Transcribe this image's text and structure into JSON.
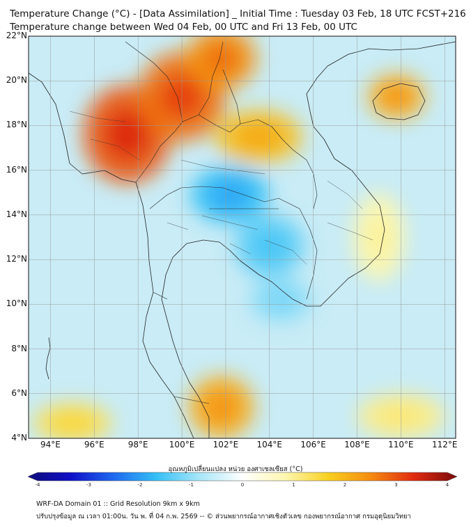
{
  "header": {
    "title_line1": "Temperature Change (°C) - [Data Assimilation] _ Initial Time : Tuesday 03 Feb, 18 UTC FCST+216",
    "title_line2": "Temperature change between Wed 04 Feb, 00 UTC and Fri 13 Feb, 00 UTC"
  },
  "map": {
    "lat_labels": [
      "22°N",
      "20°N",
      "18°N",
      "16°N",
      "14°N",
      "12°N",
      "10°N",
      "8°N",
      "6°N",
      "4°N"
    ],
    "lon_labels": [
      "94°E",
      "96°E",
      "98°E",
      "100°E",
      "102°E",
      "104°E",
      "106°E",
      "108°E",
      "110°E",
      "112°E"
    ],
    "lat_range": [
      4,
      22
    ],
    "lon_range": [
      93,
      112.5
    ],
    "grid_color": "#9a9a9a",
    "ocean_color": "#c9ecf6",
    "anomalies": [
      {
        "name": "northern-myanmar-warm",
        "lon": 97.5,
        "lat": 17.6,
        "value": 2.8,
        "rx_deg": 2.0,
        "ry_deg": 2.2
      },
      {
        "name": "northern-thailand-warm",
        "lon": 100.0,
        "lat": 19.3,
        "value": 2.6,
        "rx_deg": 2.0,
        "ry_deg": 2.0
      },
      {
        "name": "laos-north-warm",
        "lon": 101.8,
        "lat": 21.0,
        "value": 2.3,
        "rx_deg": 1.6,
        "ry_deg": 1.4
      },
      {
        "name": "laos-central-warm",
        "lon": 103.5,
        "lat": 17.5,
        "value": 1.8,
        "rx_deg": 2.0,
        "ry_deg": 1.2
      },
      {
        "name": "hainan-warm",
        "lon": 109.8,
        "lat": 19.3,
        "value": 2.0,
        "rx_deg": 1.3,
        "ry_deg": 1.0
      },
      {
        "name": "northeast-thailand-cool",
        "lon": 102.2,
        "lat": 14.9,
        "value": -1.6,
        "rx_deg": 1.8,
        "ry_deg": 1.3
      },
      {
        "name": "cambodia-cool",
        "lon": 104.0,
        "lat": 12.6,
        "value": -1.3,
        "rx_deg": 1.6,
        "ry_deg": 1.4
      },
      {
        "name": "gulf-of-thailand-cool",
        "lon": 104.5,
        "lat": 10.2,
        "value": -1.0,
        "rx_deg": 1.4,
        "ry_deg": 1.0
      },
      {
        "name": "malay-peninsula-warm",
        "lon": 101.8,
        "lat": 5.4,
        "value": 2.0,
        "rx_deg": 1.5,
        "ry_deg": 1.4
      },
      {
        "name": "andaman-southwest-warm",
        "lon": 95.0,
        "lat": 4.7,
        "value": 1.3,
        "rx_deg": 1.8,
        "ry_deg": 0.9
      },
      {
        "name": "south-china-sea-warm",
        "lon": 110.0,
        "lat": 5.0,
        "value": 1.0,
        "rx_deg": 2.0,
        "ry_deg": 1.0
      },
      {
        "name": "vietnam-coast-warm",
        "lon": 109.0,
        "lat": 13.0,
        "value": 0.8,
        "rx_deg": 1.2,
        "ry_deg": 2.0
      }
    ]
  },
  "colorbar": {
    "title": "อุณหภูมิเปลี่ยนแปลง หน่วย องศาเซลเซียส (°C)",
    "ticks": [
      "-4",
      "-3",
      "-2",
      "-1",
      "0",
      "1",
      "2",
      "3",
      "4"
    ],
    "stops": [
      "#0d0d7a",
      "#1010c8",
      "#1e6af0",
      "#35c0f5",
      "#a8e6f8",
      "#ffffff",
      "#fdf7b0",
      "#f8d020",
      "#f58a10",
      "#e02a10",
      "#7a0a0a"
    ]
  },
  "footer": {
    "line1": "WRF-DA Domain 01 :: Grid Resolution 9km x 9km",
    "line2": "ปรับปรุงข้อมูล ณ เวลา 01:00น. วัน พ. ที่ 04 ก.พ. 2569 -- © ส่วนพยากรณ์อากาศเชิงตัวเลข กองพยากรณ์อากาศ กรมอุตุนิยมวิทยา"
  }
}
